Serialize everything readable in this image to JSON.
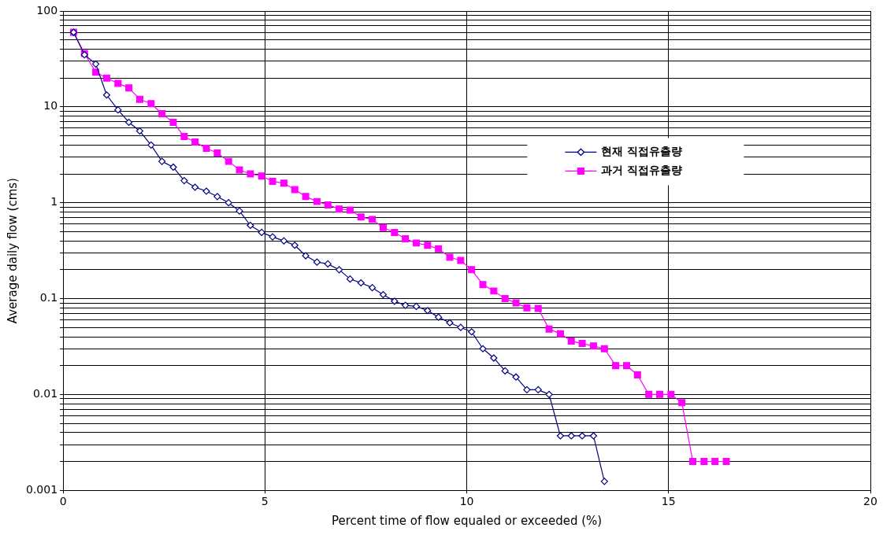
{
  "chart_data": {
    "type": "line",
    "xlabel": "Percent time of flow equaled or exceeded (%)",
    "ylabel": "Average daily flow (cms)",
    "log": "y",
    "grid": true,
    "legend": "right",
    "xlim": [
      0,
      20
    ],
    "xticks": [
      0,
      5,
      10,
      15,
      20
    ],
    "ylim": [
      0.001,
      100
    ],
    "yticks": [
      {
        "value": 0.001,
        "label": "0.001"
      },
      {
        "value": 0.002,
        "label": null
      },
      {
        "value": 0.003,
        "label": null
      },
      {
        "value": 0.004,
        "label": null
      },
      {
        "value": 0.005,
        "label": null
      },
      {
        "value": 0.006,
        "label": null
      },
      {
        "value": 0.007,
        "label": null
      },
      {
        "value": 0.008,
        "label": null
      },
      {
        "value": 0.009,
        "label": null
      },
      {
        "value": 0.01,
        "label": "0.01"
      },
      {
        "value": 0.02,
        "label": null
      },
      {
        "value": 0.03,
        "label": null
      },
      {
        "value": 0.04,
        "label": null
      },
      {
        "value": 0.05,
        "label": null
      },
      {
        "value": 0.06,
        "label": null
      },
      {
        "value": 0.07,
        "label": null
      },
      {
        "value": 0.08,
        "label": null
      },
      {
        "value": 0.09,
        "label": null
      },
      {
        "value": 0.1,
        "label": "0.1"
      },
      {
        "value": 0.2,
        "label": null
      },
      {
        "value": 0.3,
        "label": null
      },
      {
        "value": 0.4,
        "label": null
      },
      {
        "value": 0.5,
        "label": null
      },
      {
        "value": 0.6,
        "label": null
      },
      {
        "value": 0.7,
        "label": null
      },
      {
        "value": 0.8,
        "label": null
      },
      {
        "value": 0.9,
        "label": null
      },
      {
        "value": 1,
        "label": "1"
      },
      {
        "value": 2,
        "label": null
      },
      {
        "value": 3,
        "label": null
      },
      {
        "value": 4,
        "label": null
      },
      {
        "value": 5,
        "label": null
      },
      {
        "value": 6,
        "label": null
      },
      {
        "value": 7,
        "label": null
      },
      {
        "value": 8,
        "label": null
      },
      {
        "value": 9,
        "label": null
      },
      {
        "value": 10,
        "label": "10"
      },
      {
        "value": 20,
        "label": null
      },
      {
        "value": 30,
        "label": null
      },
      {
        "value": 40,
        "label": null
      },
      {
        "value": 50,
        "label": null
      },
      {
        "value": 60,
        "label": null
      },
      {
        "value": 70,
        "label": null
      },
      {
        "value": 80,
        "label": null
      },
      {
        "value": 90,
        "label": null
      },
      {
        "value": 100,
        "label": "100"
      }
    ],
    "series": [
      {
        "name": "현재 직접유출량",
        "color": "#000080",
        "marker": "diamond",
        "x": [
          0.26,
          0.53,
          0.81,
          1.08,
          1.36,
          1.63,
          1.9,
          2.18,
          2.45,
          2.73,
          3.0,
          3.27,
          3.55,
          3.82,
          4.1,
          4.37,
          4.64,
          4.92,
          5.19,
          5.47,
          5.74,
          6.01,
          6.29,
          6.56,
          6.84,
          7.11,
          7.38,
          7.66,
          7.93,
          8.21,
          8.48,
          8.75,
          9.03,
          9.3,
          9.58,
          9.85,
          10.12,
          10.4,
          10.67,
          10.95,
          11.22,
          11.49,
          11.77,
          12.04,
          12.32,
          12.59,
          12.86,
          13.14,
          13.41
        ],
        "values": [
          60,
          35,
          28,
          13.3,
          9.3,
          6.9,
          5.6,
          4.0,
          2.7,
          2.35,
          1.7,
          1.45,
          1.32,
          1.16,
          1.0,
          0.82,
          0.58,
          0.49,
          0.44,
          0.4,
          0.36,
          0.28,
          0.24,
          0.23,
          0.2,
          0.16,
          0.146,
          0.13,
          0.11,
          0.094,
          0.085,
          0.083,
          0.075,
          0.064,
          0.056,
          0.05,
          0.045,
          0.03,
          0.024,
          0.0176,
          0.0152,
          0.0112,
          0.0112,
          0.01,
          0.0037,
          0.0037,
          0.0037,
          0.0037,
          0.00124
        ]
      },
      {
        "name": "과거 직접유출량",
        "color": "#ff00ff",
        "marker": "square",
        "x": [
          0.26,
          0.53,
          0.81,
          1.08,
          1.36,
          1.63,
          1.9,
          2.18,
          2.45,
          2.73,
          3.0,
          3.27,
          3.55,
          3.82,
          4.1,
          4.37,
          4.64,
          4.92,
          5.19,
          5.47,
          5.74,
          6.01,
          6.29,
          6.56,
          6.84,
          7.11,
          7.38,
          7.66,
          7.93,
          8.21,
          8.48,
          8.75,
          9.03,
          9.3,
          9.58,
          9.85,
          10.12,
          10.4,
          10.67,
          10.95,
          11.22,
          11.49,
          11.77,
          12.04,
          12.32,
          12.59,
          12.86,
          13.14,
          13.41,
          13.69,
          13.96,
          14.23,
          14.51,
          14.78,
          15.06,
          15.33,
          15.6,
          15.88,
          16.15,
          16.43
        ],
        "values": [
          60,
          36,
          23,
          20,
          17.6,
          15.8,
          12,
          10.8,
          8.5,
          6.9,
          4.9,
          4.3,
          3.7,
          3.3,
          2.7,
          2.2,
          2.0,
          1.9,
          1.67,
          1.6,
          1.37,
          1.16,
          1.03,
          0.95,
          0.86,
          0.84,
          0.71,
          0.67,
          0.55,
          0.49,
          0.42,
          0.38,
          0.36,
          0.33,
          0.27,
          0.25,
          0.2,
          0.14,
          0.12,
          0.1,
          0.09,
          0.08,
          0.079,
          0.048,
          0.043,
          0.036,
          0.034,
          0.032,
          0.03,
          0.02,
          0.02,
          0.016,
          0.01,
          0.01,
          0.01,
          0.0082,
          0.002,
          0.002,
          0.002,
          0.002
        ]
      }
    ]
  }
}
